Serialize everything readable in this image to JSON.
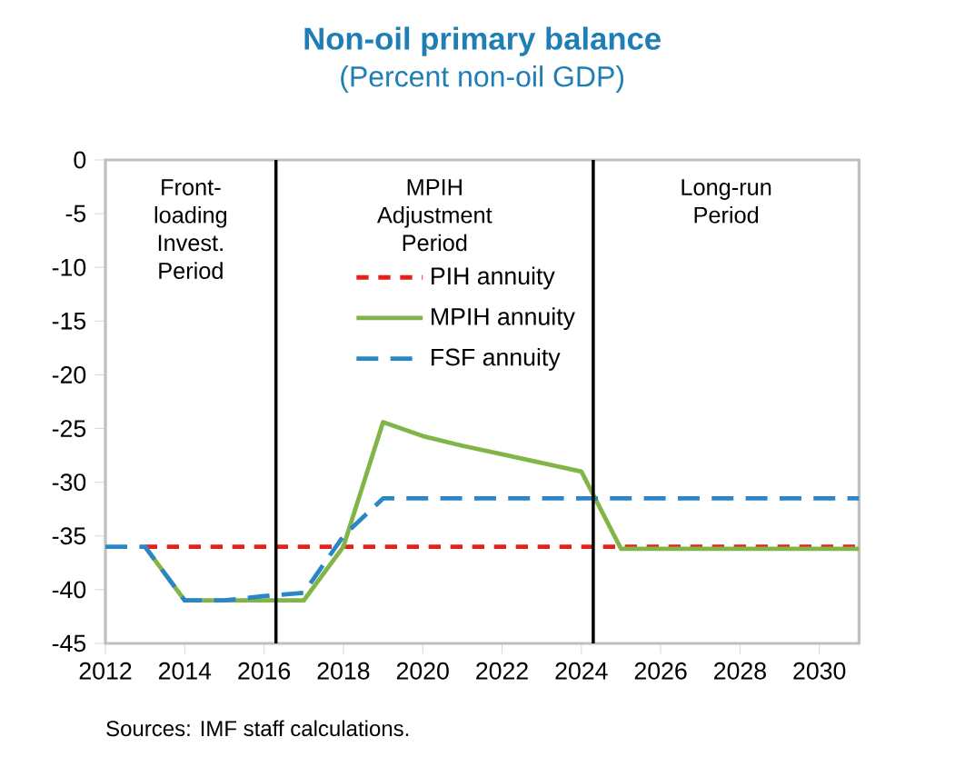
{
  "chart_data": {
    "type": "line",
    "title": "Non-oil primary balance",
    "subtitle": "(Percent non-oil  GDP)",
    "x": [
      2012,
      2013,
      2014,
      2015,
      2016,
      2017,
      2018,
      2019,
      2020,
      2021,
      2022,
      2023,
      2024,
      2025,
      2026,
      2027,
      2028,
      2029,
      2030,
      2031
    ],
    "series": [
      {
        "name": "PIH annuity",
        "color": "#e8201c",
        "line_style": "dashed",
        "values": [
          null,
          -36,
          -36,
          -36,
          -36,
          -36,
          -36,
          -36,
          -36,
          -36,
          -36,
          -36,
          -36,
          -36,
          -36,
          -36,
          -36,
          -36,
          -36,
          -36
        ]
      },
      {
        "name": "MPIH annuity",
        "color": "#82b548",
        "line_style": "solid",
        "values": [
          null,
          -36,
          -41,
          -41,
          -41,
          -41,
          -36,
          -24.4,
          -25.7,
          -26.6,
          -27.4,
          -28.2,
          -29,
          -36.2,
          -36.2,
          -36.2,
          -36.2,
          -36.2,
          -36.2,
          -36.2
        ]
      },
      {
        "name": "FSF annuity",
        "color": "#2a86c6",
        "line_style": "dashed",
        "values": [
          -36,
          -36,
          -41,
          -41,
          -40.6,
          -40.3,
          -35,
          -31.5,
          -31.5,
          -31.5,
          -31.5,
          -31.5,
          -31.5,
          -31.5,
          -31.5,
          -31.5,
          -31.5,
          -31.5,
          -31.5,
          -31.5
        ]
      }
    ],
    "xlim": [
      2012,
      2031
    ],
    "ylim": [
      -45,
      0
    ],
    "xticks": [
      2012,
      2014,
      2016,
      2018,
      2020,
      2022,
      2024,
      2026,
      2028,
      2030
    ],
    "yticks": [
      -45,
      -40,
      -35,
      -30,
      -25,
      -20,
      -15,
      -10,
      -5,
      0
    ],
    "ref_lines": [
      {
        "axis": "x",
        "value": 2016.3,
        "color": "#000000"
      },
      {
        "axis": "x",
        "value": 2024.3,
        "color": "#000000"
      }
    ],
    "annotations": [
      "Front-loading Invest. Period",
      "MPIH Adjustment Period",
      "Long-run Period",
      "Sources: IMF staff calculations."
    ],
    "legend": "top",
    "grid": false,
    "marker": "none"
  }
}
